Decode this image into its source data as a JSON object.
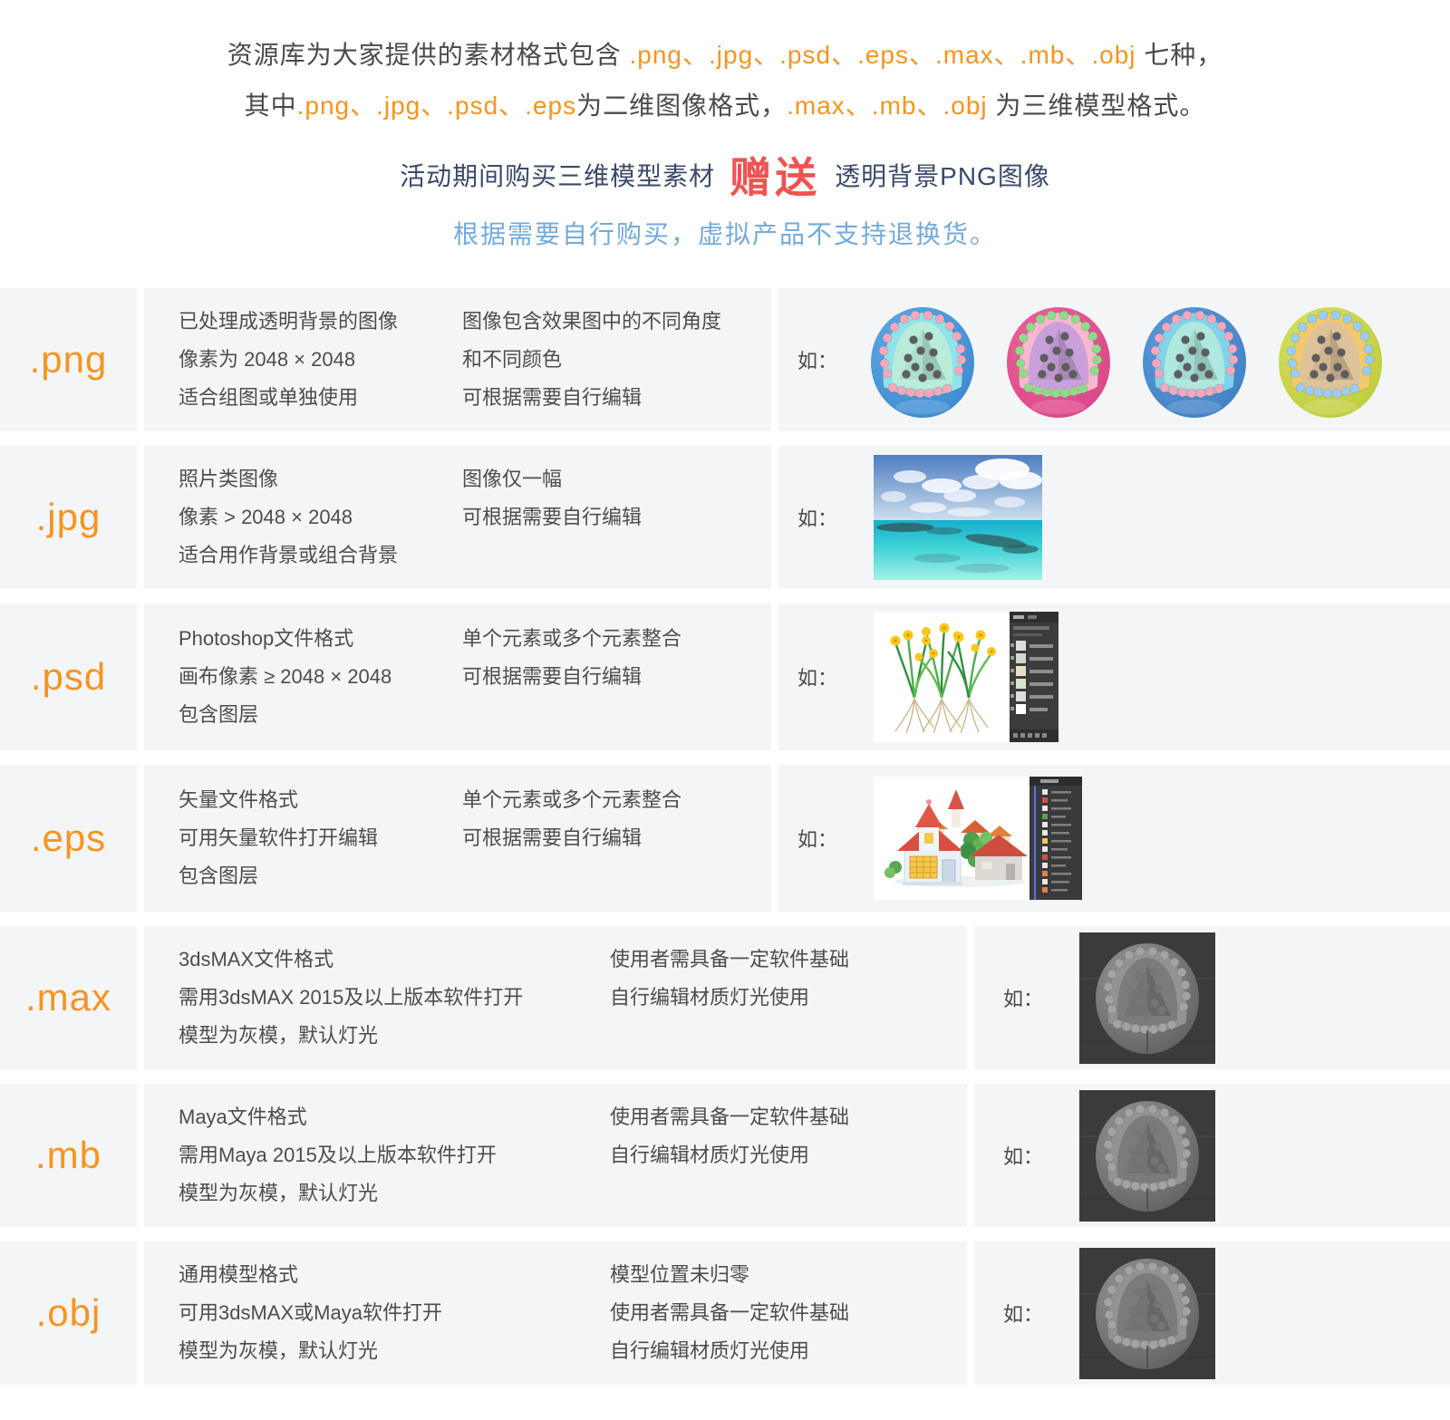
{
  "colors": {
    "accent_orange": "#f7941e",
    "badge_red": "#ef5350",
    "note_blue": "#72aadf",
    "intro_dark_blue": "#3a4a6b",
    "body_text": "#4d4d4d",
    "row_background": "#f3f5f7"
  },
  "header": {
    "line1_parts": [
      "资源库为大家提供的素材格式包含 ",
      ".png、.jpg、.psd、.eps、.max、.mb、.obj",
      " 七种，"
    ],
    "line2_parts": [
      "其中",
      ".png、.jpg、.psd、.eps",
      "为二维图像格式，",
      ".max、.mb、.obj",
      " 为三维模型格式。"
    ],
    "line3_parts": [
      "活动期间购买三维模型素材",
      "赠送",
      "透明背景PNG图像"
    ],
    "line4": "根据需要自行购买，虚拟产品不支持退换货。"
  },
  "formats": [
    {
      "label": ".png",
      "col_a": [
        "已处理成透明背景的图像",
        "像素为 2048 × 2048",
        "适合组图或单独使用"
      ],
      "col_b": [
        "图像包含效果图中的不同角度",
        "和不同颜色",
        "可根据需要自行编辑"
      ],
      "example_label": "如："
    },
    {
      "label": ".jpg",
      "col_a": [
        "照片类图像",
        "像素 > 2048 × 2048",
        "适合用作背景或组合背景"
      ],
      "col_b": [
        "图像仅一幅",
        "可根据需要自行编辑"
      ],
      "example_label": "如："
    },
    {
      "label": ".psd",
      "col_a": [
        "Photoshop文件格式",
        "画布像素 ≥ 2048 × 2048",
        "包含图层"
      ],
      "col_b": [
        "单个元素或多个元素整合",
        "可根据需要自行编辑"
      ],
      "example_label": "如："
    },
    {
      "label": ".eps",
      "col_a": [
        "矢量文件格式",
        "可用矢量软件打开编辑",
        "包含图层"
      ],
      "col_b": [
        "单个元素或多个元素整合",
        "可根据需要自行编辑"
      ],
      "example_label": "如："
    },
    {
      "label": ".max",
      "col_a": [
        "3dsMAX文件格式",
        "需用3dsMAX 2015及以上版本软件打开",
        "模型为灰模，默认灯光"
      ],
      "col_b": [
        "使用者需具备一定软件基础",
        "自行编辑材质灯光使用"
      ],
      "example_label": "如："
    },
    {
      "label": ".mb",
      "col_a": [
        "Maya文件格式",
        "需用Maya 2015及以上版本软件打开",
        "模型为灰模，默认灯光"
      ],
      "col_b": [
        "使用者需具备一定软件基础",
        "自行编辑材质灯光使用"
      ],
      "example_label": "如："
    },
    {
      "label": ".obj",
      "col_a": [
        "通用模型格式",
        "可用3dsMAX或Maya软件打开",
        "模型为灰模，默认灯光"
      ],
      "col_b": [
        "模型位置未归零",
        "使用者需具备一定软件基础",
        "自行编辑材质灯光使用"
      ],
      "example_label": "如："
    }
  ],
  "assets": {
    "ball_palettes": [
      {
        "body": "#63aee9",
        "body_dark": "#3c88cf",
        "rim": "#8fe4ec",
        "inner": "#b9edda",
        "bead": "#f4a8bd",
        "dot": "#5d5d5d"
      },
      {
        "body": "#f2679f",
        "body_dark": "#d94486",
        "rim": "#f9b8cd",
        "inner": "#c9a0dc",
        "bead": "#8edc8a",
        "dot": "#5d5d5d"
      },
      {
        "body": "#5f9fe1",
        "body_dark": "#3f7fc2",
        "rim": "#82d2ea",
        "inner": "#afe9dd",
        "bead": "#f4a8bd",
        "dot": "#5d5d5d"
      },
      {
        "body": "#dde663",
        "body_dark": "#bccb3a",
        "rim": "#f2ca6d",
        "inner": "#dec29a",
        "bead": "#9bcdf3",
        "dot": "#5d5d5d"
      }
    ],
    "model_palette": {
      "bg": "#3b3b3b",
      "sphere": "#9c9c9c",
      "sphere_dark": "#5e5e5e",
      "rim": "#939393",
      "inner": "#7b7b7b",
      "bead": "#a3a3a3",
      "dot": "#757575",
      "seam": "#4c4c4c"
    }
  }
}
